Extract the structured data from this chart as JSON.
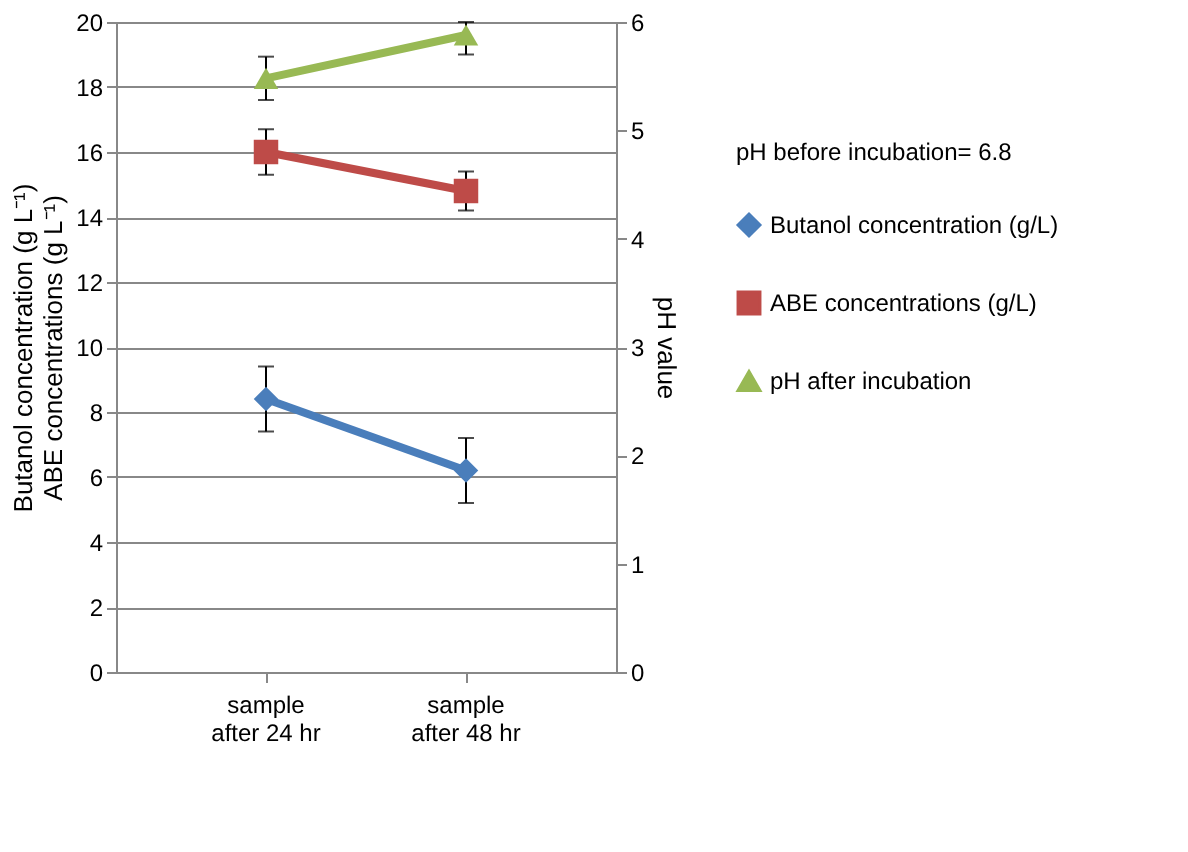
{
  "chart_data": {
    "type": "line",
    "categories": [
      "sample\nafter 24 hr",
      "sample\nafter 48 hr"
    ],
    "ylabel": "Butanol concentration (g L⁻¹)\nABE concentrations (g L⁻¹)",
    "y2label": "pH value",
    "ylim": [
      0,
      20
    ],
    "yticks": [
      0,
      2,
      4,
      6,
      8,
      10,
      12,
      14,
      16,
      18,
      20
    ],
    "y2lim": [
      0,
      6
    ],
    "y2ticks": [
      0,
      1,
      2,
      3,
      4,
      5,
      6
    ],
    "grid": "y",
    "legend": "right",
    "line_style": "solid",
    "annotations": [
      "pH before incubation= 6.8"
    ],
    "series": [
      {
        "name": "Butanol concentration (g/L)",
        "color": "#4a7ebb",
        "marker": "diamond",
        "values": [
          8.4,
          6.2
        ],
        "errors": [
          1.0,
          1.0
        ]
      },
      {
        "name": "ABE concentrations (g/L)",
        "color": "#be4b48",
        "marker": "square",
        "values": [
          16.0,
          14.8
        ],
        "errors": [
          0.7,
          0.6
        ]
      },
      {
        "name": "pH after incubation",
        "color": "#98b954",
        "marker": "triangle",
        "axis": "y2",
        "values": [
          5.48,
          5.88
        ],
        "errors": [
          0.2,
          [
            5.7,
            6.0
          ]
        ]
      }
    ]
  }
}
